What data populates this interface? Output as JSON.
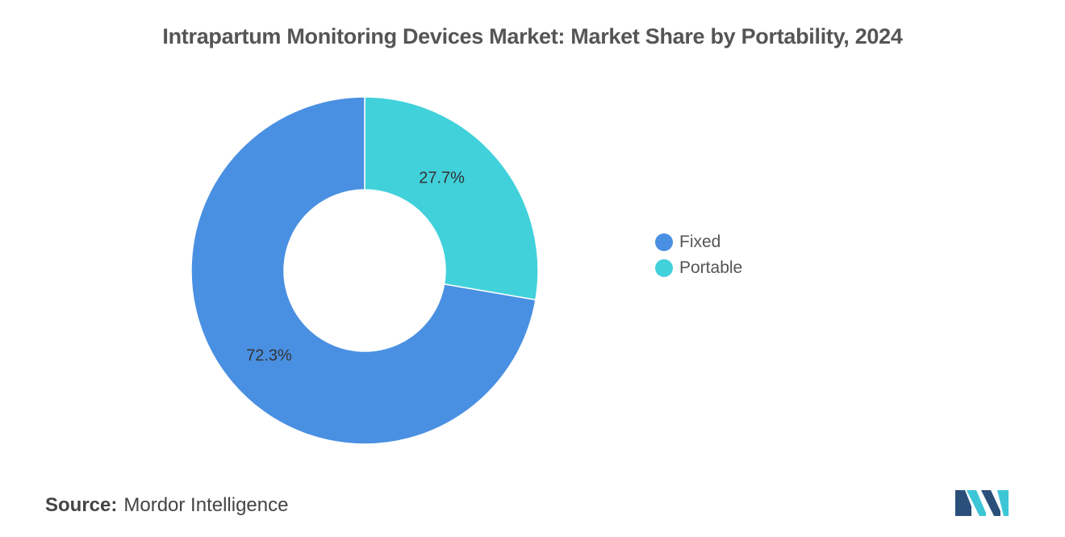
{
  "chart_data": {
    "type": "pie",
    "variant": "donut",
    "title": "Intrapartum Monitoring Devices Market: Market Share by Portability, 2024",
    "categories": [
      "Fixed",
      "Portable"
    ],
    "values": [
      72.3,
      27.7
    ],
    "labels": [
      "72.3%",
      "27.7%"
    ],
    "colors": [
      "#4a90e2",
      "#41d1db"
    ],
    "legend_position": "right"
  },
  "legend": {
    "items": [
      {
        "label": "Fixed",
        "color": "#4a90e2"
      },
      {
        "label": "Portable",
        "color": "#41d1db"
      }
    ]
  },
  "source": {
    "label": "Source:",
    "value": "Mordor Intelligence"
  },
  "logo": {
    "icon": "mordor-intelligence-logo",
    "colors": [
      "#1f3a5f",
      "#3cc6d6"
    ]
  }
}
